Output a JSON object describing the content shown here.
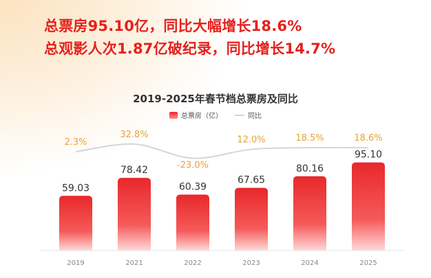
{
  "headline": {
    "line1": "总票房95.10亿，同比大幅增长18.6%",
    "line2": "总观影人次1.87亿破纪录，同比增长14.7%"
  },
  "chart_data": {
    "type": "bar",
    "title": "2019-2025年春节档总票房及同比",
    "categories": [
      "2019",
      "2021",
      "2022",
      "2023",
      "2024",
      "2025"
    ],
    "series": [
      {
        "name": "总票房（亿）",
        "kind": "bar",
        "values": [
          59.03,
          78.42,
          60.39,
          67.65,
          80.16,
          95.1
        ],
        "labels": [
          "59.03",
          "78.42",
          "60.39",
          "67.65",
          "80.16",
          "95.10"
        ],
        "color": "#e8282a"
      },
      {
        "name": "同比",
        "kind": "line",
        "values": [
          2.3,
          32.8,
          -23.0,
          12.0,
          18.5,
          18.6
        ],
        "labels": [
          "2.3%",
          "32.8%",
          "-23.0%",
          "12.0%",
          "18.5%",
          "18.6%"
        ],
        "color": "#d0d6de",
        "label_color": "#e8a23a"
      }
    ],
    "legend_position": "top-center",
    "grid": false
  }
}
